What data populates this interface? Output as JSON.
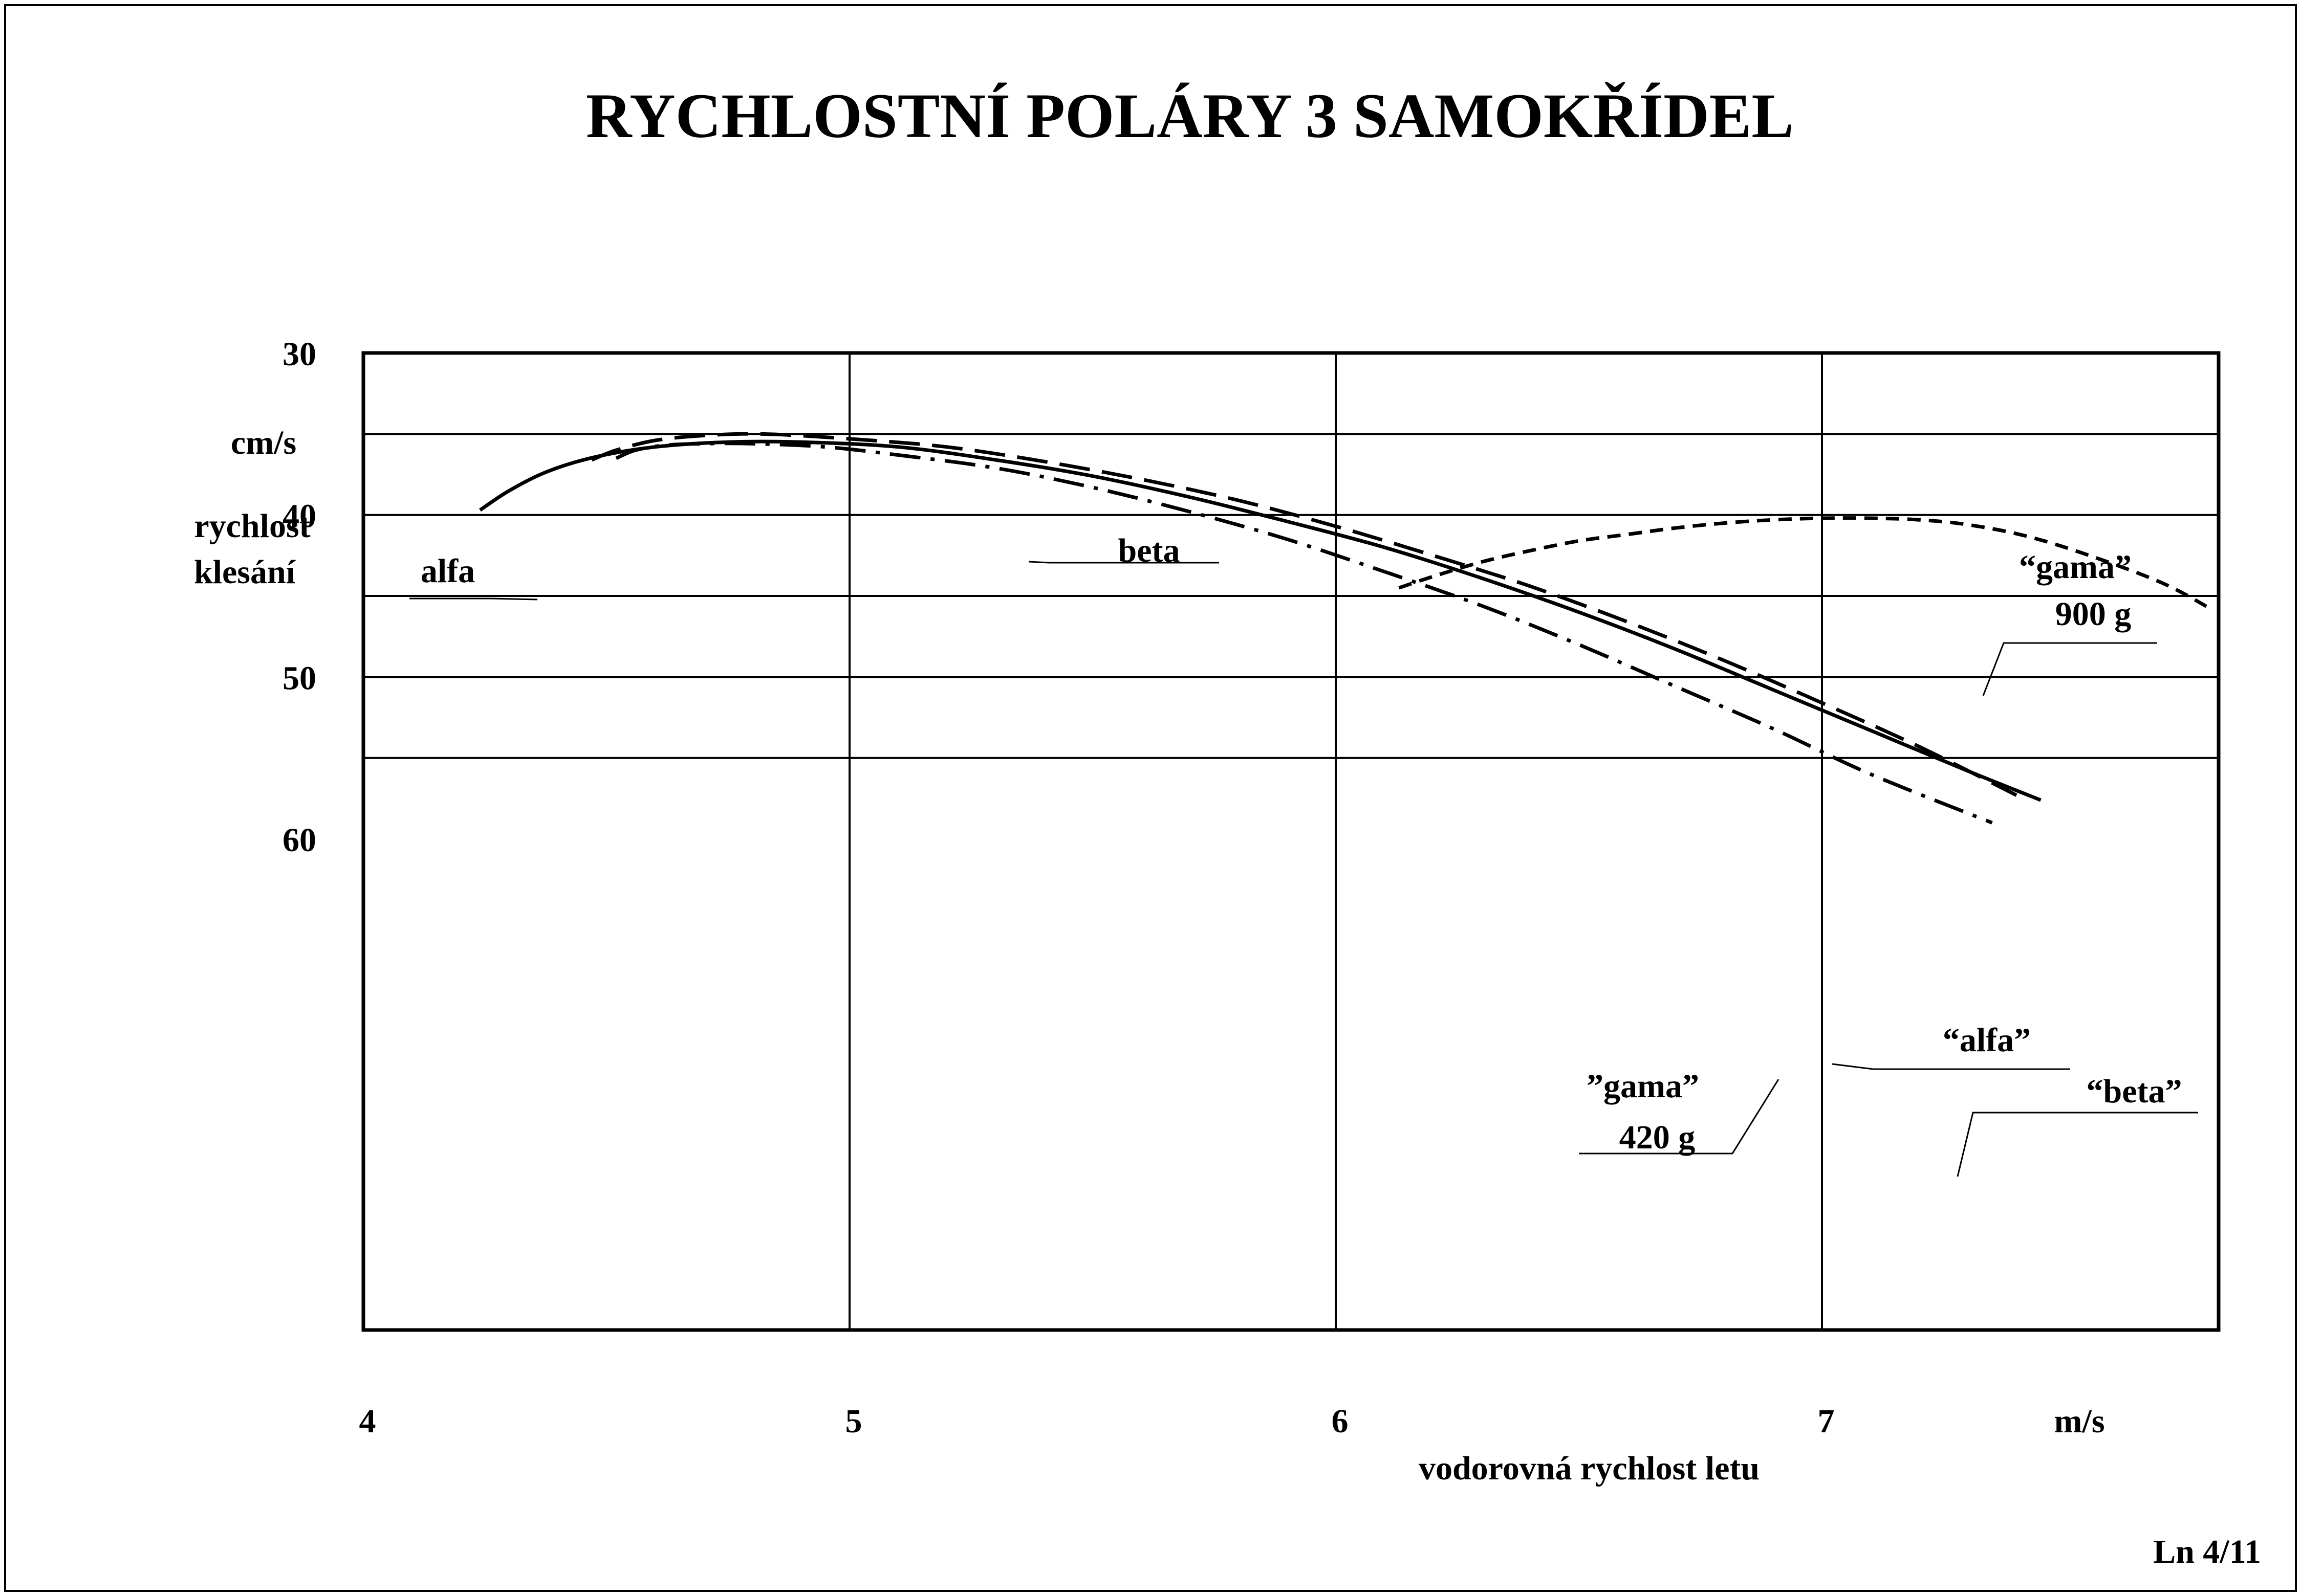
{
  "sheet_id": "Ln 4/11",
  "chart_data": {
    "type": "line",
    "title": "RYCHLOSTNÍ  POLÁRY  3  SAMOKŘÍDEL",
    "xlabel": "vodorovná rychlost letu",
    "x_unit": "m/s",
    "ylabel_lines": [
      "rychlost",
      "klesání"
    ],
    "y_unit": "cm/s",
    "xlim": [
      4,
      7.8
    ],
    "ylim": [
      30,
      60
    ],
    "y_inverted": true,
    "x_ticks": [
      "4",
      "5",
      "6",
      "7"
    ],
    "y_ticks": [
      "30",
      "40",
      "50",
      "60"
    ],
    "grid": true,
    "series": [
      {
        "name": "alfa",
        "style": "solid",
        "x": [
          4.24,
          4.3,
          4.38,
          4.48,
          4.6,
          4.75,
          4.9,
          5.1,
          5.3,
          5.5,
          5.7,
          5.9,
          6.1,
          6.3,
          6.5,
          6.7,
          6.9,
          7.1,
          7.3,
          7.45
        ],
        "y": [
          39.7,
          38.5,
          37.3,
          36.4,
          35.8,
          35.5,
          35.5,
          35.8,
          36.6,
          37.6,
          38.9,
          40.4,
          42.0,
          43.9,
          46.0,
          48.3,
          50.8,
          53.3,
          55.8,
          57.6
        ]
      },
      {
        "name": "beta",
        "style": "dashed",
        "x": [
          4.47,
          4.52,
          4.6,
          4.7,
          4.82,
          5.0,
          5.2,
          5.4,
          5.6,
          5.8,
          6.0,
          6.2,
          6.4,
          6.6,
          6.8,
          7.0,
          7.2,
          7.4
        ],
        "y": [
          36.6,
          36.0,
          35.4,
          35.1,
          35.0,
          35.3,
          35.8,
          36.7,
          37.8,
          39.1,
          40.7,
          42.5,
          44.4,
          46.6,
          49.0,
          51.6,
          54.3,
          57.3
        ]
      },
      {
        "name": "gama 420 g",
        "style": "dash-dot",
        "x": [
          4.52,
          4.56,
          4.62,
          4.7,
          4.8,
          4.95,
          5.1,
          5.3,
          5.5,
          5.7,
          5.9,
          6.1,
          6.3,
          6.5,
          6.7,
          6.9,
          7.1,
          7.35
        ],
        "y": [
          36.5,
          36.0,
          35.7,
          35.6,
          35.6,
          35.8,
          36.3,
          37.1,
          38.3,
          39.8,
          41.5,
          43.5,
          45.6,
          48.0,
          50.6,
          53.2,
          56.0,
          59.0
        ]
      },
      {
        "name": "gama 900 g",
        "style": "short-dashed",
        "x": [
          6.13,
          6.2,
          6.3,
          6.4,
          6.5,
          6.6,
          6.7,
          6.8,
          6.9,
          7.0,
          7.1,
          7.2,
          7.3,
          7.42,
          7.55,
          7.7,
          7.8
        ],
        "y": [
          44.5,
          43.8,
          42.9,
          42.2,
          41.6,
          41.2,
          40.8,
          40.5,
          40.3,
          40.2,
          40.2,
          40.3,
          40.6,
          41.3,
          42.5,
          44.2,
          45.8
        ]
      }
    ],
    "annotations": [
      {
        "id": "alfa",
        "lines": [
          "alfa"
        ]
      },
      {
        "id": "beta",
        "lines": [
          "beta"
        ]
      },
      {
        "id": "gama900",
        "lines": [
          "“gama”",
          "900 g"
        ]
      },
      {
        "id": "alfa2",
        "lines": [
          "“alfa”"
        ]
      },
      {
        "id": "beta2",
        "lines": [
          "“beta”"
        ]
      },
      {
        "id": "gama420",
        "lines": [
          "”gama”",
          "420 g"
        ]
      }
    ]
  }
}
